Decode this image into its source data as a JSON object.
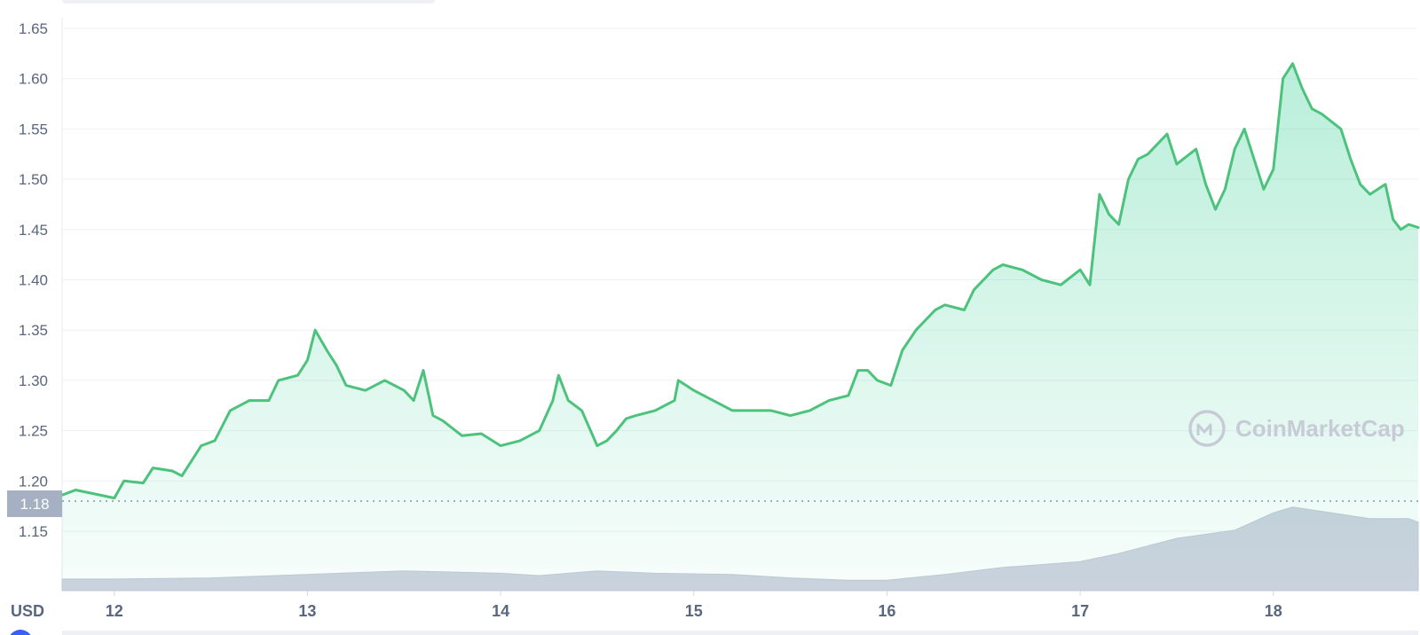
{
  "chart_data": {
    "type": "area",
    "unit_label": "USD",
    "watermark": "CoinMarketCap",
    "reference_value": "1.18",
    "ylim": [
      1.1,
      1.65
    ],
    "xlim": [
      11.73,
      18.75
    ],
    "y_ticks": [
      "1.15",
      "1.20",
      "1.25",
      "1.30",
      "1.35",
      "1.40",
      "1.45",
      "1.50",
      "1.55",
      "1.60",
      "1.65"
    ],
    "x_ticks": [
      "12",
      "13",
      "14",
      "15",
      "16",
      "17",
      "18"
    ],
    "grid": "horizontal",
    "colors": {
      "line": "#4cc27c",
      "fill": "#16c784",
      "volume": "#cfd3e0",
      "text": "#58667e",
      "ref_badge": "#a6b0c3"
    },
    "series": [
      {
        "values": [
          [
            11.73,
            1.186
          ],
          [
            11.8,
            1.191
          ],
          [
            11.9,
            1.187
          ],
          [
            12.0,
            1.183
          ],
          [
            12.05,
            1.2
          ],
          [
            12.15,
            1.198
          ],
          [
            12.2,
            1.213
          ],
          [
            12.3,
            1.21
          ],
          [
            12.35,
            1.205
          ],
          [
            12.45,
            1.235
          ],
          [
            12.52,
            1.24
          ],
          [
            12.6,
            1.27
          ],
          [
            12.7,
            1.28
          ],
          [
            12.8,
            1.28
          ],
          [
            12.85,
            1.3
          ],
          [
            12.95,
            1.305
          ],
          [
            13.0,
            1.32
          ],
          [
            13.04,
            1.35
          ],
          [
            13.1,
            1.33
          ],
          [
            13.15,
            1.315
          ],
          [
            13.2,
            1.295
          ],
          [
            13.3,
            1.29
          ],
          [
            13.4,
            1.3
          ],
          [
            13.5,
            1.29
          ],
          [
            13.55,
            1.28
          ],
          [
            13.6,
            1.31
          ],
          [
            13.65,
            1.265
          ],
          [
            13.7,
            1.26
          ],
          [
            13.8,
            1.245
          ],
          [
            13.9,
            1.247
          ],
          [
            14.0,
            1.235
          ],
          [
            14.1,
            1.24
          ],
          [
            14.2,
            1.25
          ],
          [
            14.27,
            1.28
          ],
          [
            14.3,
            1.305
          ],
          [
            14.35,
            1.28
          ],
          [
            14.42,
            1.27
          ],
          [
            14.5,
            1.235
          ],
          [
            14.55,
            1.24
          ],
          [
            14.6,
            1.25
          ],
          [
            14.65,
            1.262
          ],
          [
            14.7,
            1.265
          ],
          [
            14.8,
            1.27
          ],
          [
            14.9,
            1.28
          ],
          [
            14.92,
            1.3
          ],
          [
            15.0,
            1.29
          ],
          [
            15.1,
            1.28
          ],
          [
            15.2,
            1.27
          ],
          [
            15.3,
            1.27
          ],
          [
            15.4,
            1.27
          ],
          [
            15.5,
            1.265
          ],
          [
            15.6,
            1.27
          ],
          [
            15.7,
            1.28
          ],
          [
            15.8,
            1.285
          ],
          [
            15.85,
            1.31
          ],
          [
            15.9,
            1.31
          ],
          [
            15.95,
            1.3
          ],
          [
            16.02,
            1.295
          ],
          [
            16.08,
            1.33
          ],
          [
            16.15,
            1.35
          ],
          [
            16.25,
            1.37
          ],
          [
            16.3,
            1.375
          ],
          [
            16.4,
            1.37
          ],
          [
            16.45,
            1.39
          ],
          [
            16.55,
            1.41
          ],
          [
            16.6,
            1.415
          ],
          [
            16.7,
            1.41
          ],
          [
            16.8,
            1.4
          ],
          [
            16.9,
            1.395
          ],
          [
            17.0,
            1.41
          ],
          [
            17.05,
            1.395
          ],
          [
            17.1,
            1.485
          ],
          [
            17.15,
            1.465
          ],
          [
            17.2,
            1.455
          ],
          [
            17.25,
            1.5
          ],
          [
            17.3,
            1.52
          ],
          [
            17.35,
            1.525
          ],
          [
            17.45,
            1.545
          ],
          [
            17.5,
            1.515
          ],
          [
            17.6,
            1.53
          ],
          [
            17.65,
            1.495
          ],
          [
            17.7,
            1.47
          ],
          [
            17.75,
            1.49
          ],
          [
            17.8,
            1.53
          ],
          [
            17.85,
            1.55
          ],
          [
            17.9,
            1.52
          ],
          [
            17.95,
            1.49
          ],
          [
            18.0,
            1.51
          ],
          [
            18.05,
            1.6
          ],
          [
            18.1,
            1.615
          ],
          [
            18.15,
            1.59
          ],
          [
            18.2,
            1.57
          ],
          [
            18.25,
            1.565
          ],
          [
            18.35,
            1.55
          ],
          [
            18.4,
            1.52
          ],
          [
            18.45,
            1.495
          ],
          [
            18.5,
            1.485
          ],
          [
            18.58,
            1.495
          ],
          [
            18.62,
            1.46
          ],
          [
            18.66,
            1.45
          ],
          [
            18.7,
            1.455
          ],
          [
            18.75,
            1.452
          ]
        ]
      }
    ],
    "volume": [
      [
        11.73,
        0.1
      ],
      [
        12.0,
        0.1
      ],
      [
        12.5,
        0.11
      ],
      [
        13.0,
        0.14
      ],
      [
        13.5,
        0.17
      ],
      [
        14.0,
        0.15
      ],
      [
        14.2,
        0.13
      ],
      [
        14.5,
        0.17
      ],
      [
        14.8,
        0.15
      ],
      [
        15.2,
        0.14
      ],
      [
        15.5,
        0.11
      ],
      [
        15.8,
        0.09
      ],
      [
        16.0,
        0.09
      ],
      [
        16.3,
        0.14
      ],
      [
        16.6,
        0.2
      ],
      [
        17.0,
        0.25
      ],
      [
        17.2,
        0.32
      ],
      [
        17.5,
        0.45
      ],
      [
        17.8,
        0.52
      ],
      [
        18.0,
        0.67
      ],
      [
        18.1,
        0.72
      ],
      [
        18.3,
        0.67
      ],
      [
        18.5,
        0.62
      ],
      [
        18.7,
        0.62
      ],
      [
        18.75,
        0.59
      ]
    ]
  }
}
